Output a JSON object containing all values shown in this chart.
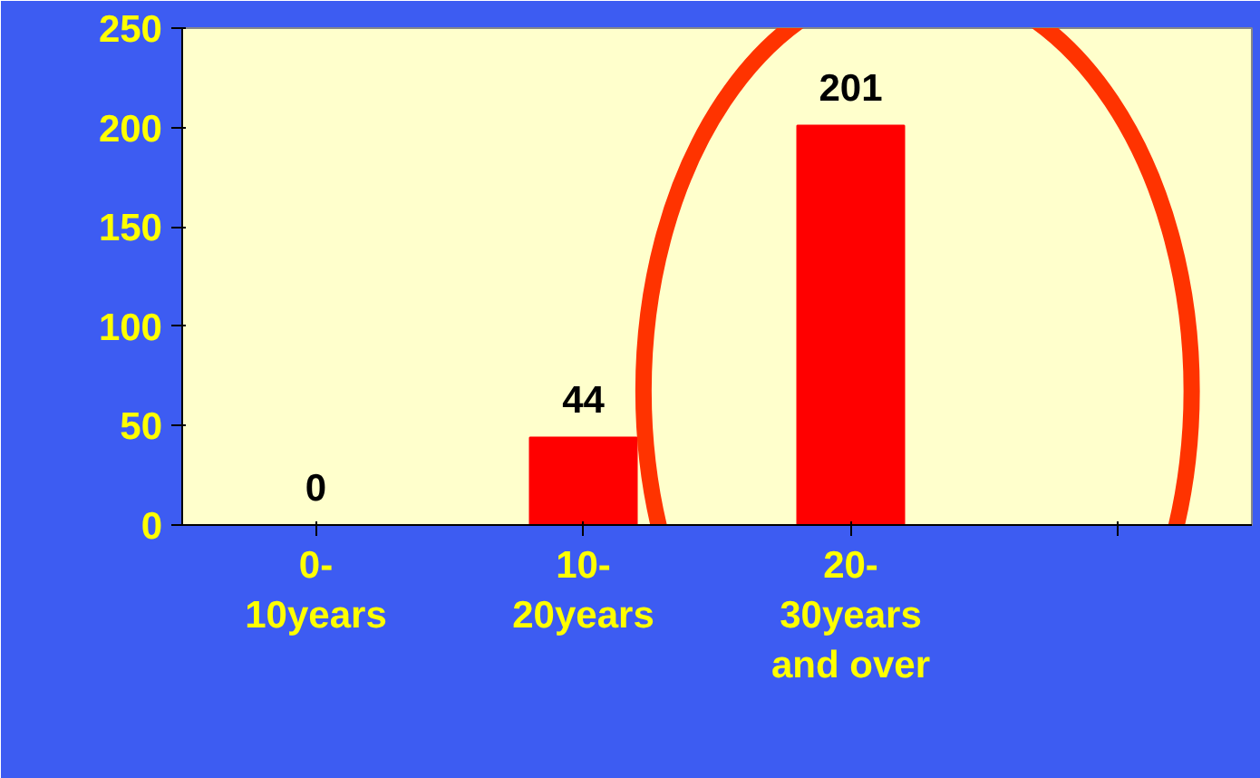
{
  "chart_data": {
    "type": "bar",
    "categories": [
      "0-10years",
      "10-20years",
      "20-30years and over",
      null
    ],
    "values": [
      0,
      44,
      201,
      null
    ],
    "color": "#ff0000",
    "ylim": [
      0,
      250
    ],
    "yticks": [
      0,
      50,
      100,
      150,
      200,
      250
    ],
    "grid": false,
    "data_labels": true
  }
}
